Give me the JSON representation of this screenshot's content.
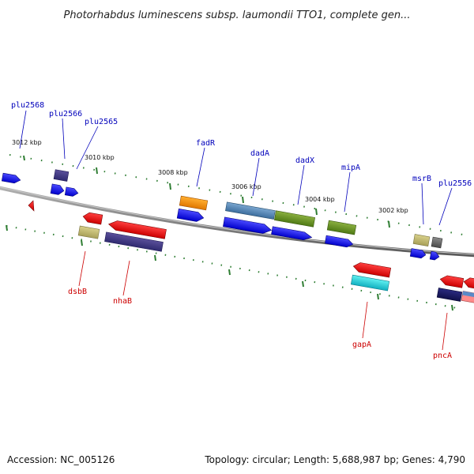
{
  "title": "Photorhabdus luminescens subsp. laumondii TTO1, complete gen...",
  "footer": {
    "accession": "Accession: NC_005126",
    "summary": "Topology: circular; Length: 5,688,987 bp; Genes: 4,790"
  },
  "ticks": [
    "3012 kbp",
    "3010 kbp",
    "3008 kbp",
    "3006 kbp",
    "3004 kbp",
    "3002 kbp"
  ],
  "labels_top": [
    "plu2568",
    "plu2566",
    "plu2565",
    "fadR",
    "dadA",
    "dadX",
    "mipA",
    "msrB",
    "plu2556"
  ],
  "labels_bottom": [
    "dsbB",
    "nhaB",
    "gapA",
    "pncA"
  ],
  "colors": {
    "label_forward": "#0000bb",
    "label_reverse": "#cc0000",
    "backbone": "#808080",
    "ticks": "#2e7d32"
  }
}
